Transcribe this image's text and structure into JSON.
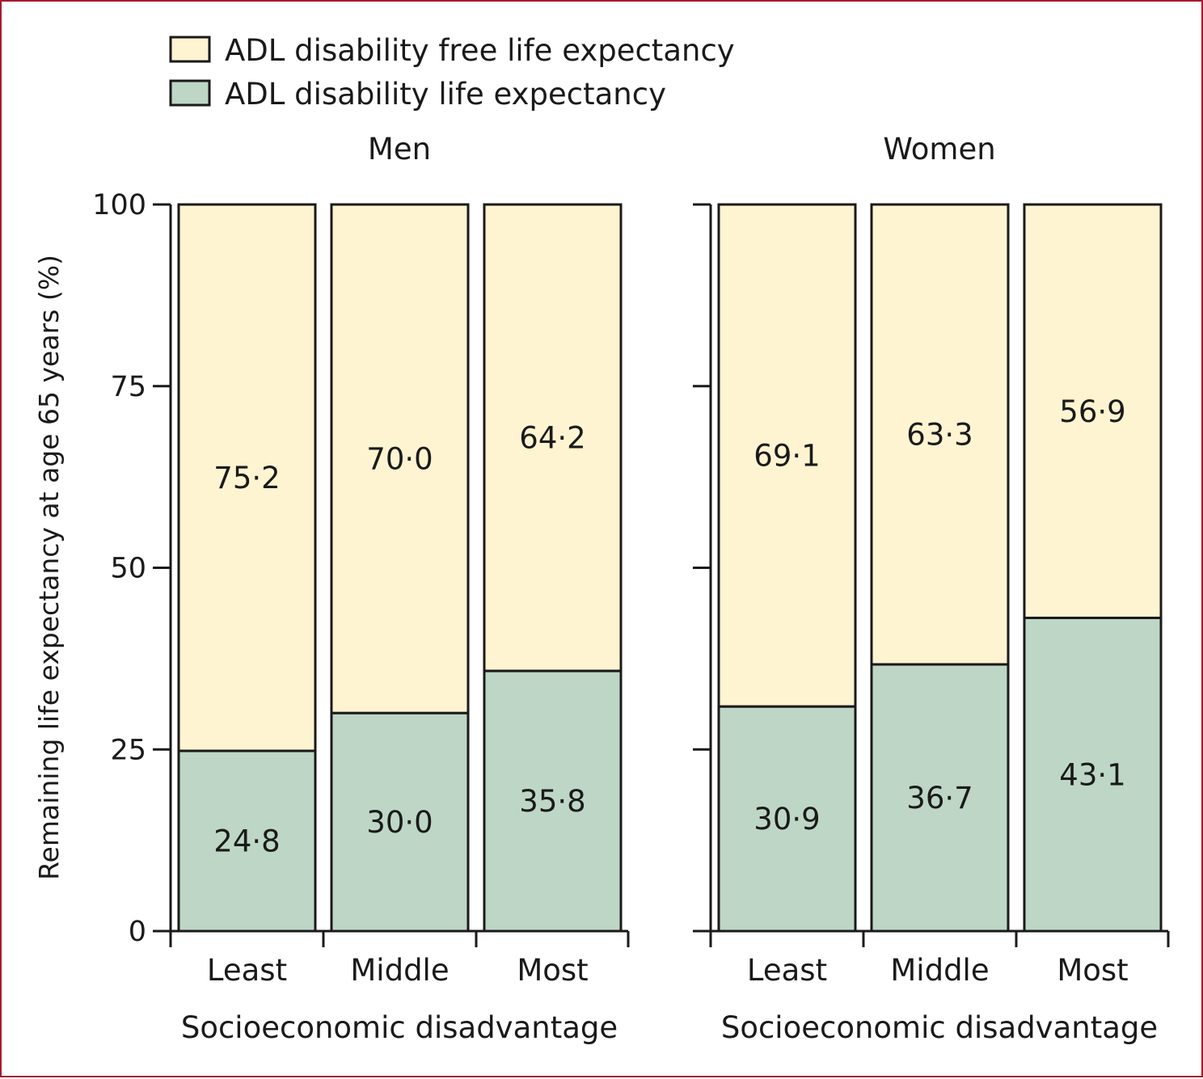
{
  "colors": {
    "free": "#fff4d1",
    "disability": "#bed6c6",
    "stroke": "#1a1a1a",
    "frame": "#a6192e"
  },
  "legend": [
    {
      "label": "ADL disability free life expectancy",
      "color_key": "free"
    },
    {
      "label": "ADL disability life expectancy",
      "color_key": "disability"
    }
  ],
  "chart_data": {
    "type": "bar",
    "stacked": true,
    "ylabel": "Remaining life expectancy at age 65 years (%)",
    "ylim": [
      0,
      100
    ],
    "yticks": [
      0,
      25,
      50,
      75,
      100
    ],
    "panels": [
      {
        "title": "Men",
        "xlabel": "Socioeconomic disadvantage",
        "categories": [
          "Least",
          "Middle",
          "Most"
        ],
        "series": [
          {
            "name": "ADL disability life expectancy",
            "values": [
              24.8,
              30.0,
              35.8
            ],
            "labels": [
              "24·8",
              "30·0",
              "35·8"
            ]
          },
          {
            "name": "ADL disability free life expectancy",
            "values": [
              75.2,
              70.0,
              64.2
            ],
            "labels": [
              "75·2",
              "70·0",
              "64·2"
            ]
          }
        ]
      },
      {
        "title": "Women",
        "xlabel": "Socioeconomic disadvantage",
        "categories": [
          "Least",
          "Middle",
          "Most"
        ],
        "series": [
          {
            "name": "ADL disability life expectancy",
            "values": [
              30.9,
              36.7,
              43.1
            ],
            "labels": [
              "30·9",
              "36·7",
              "43·1"
            ]
          },
          {
            "name": "ADL disability free life expectancy",
            "values": [
              69.1,
              63.3,
              56.9
            ],
            "labels": [
              "69·1",
              "63·3",
              "56·9"
            ]
          }
        ]
      }
    ]
  }
}
